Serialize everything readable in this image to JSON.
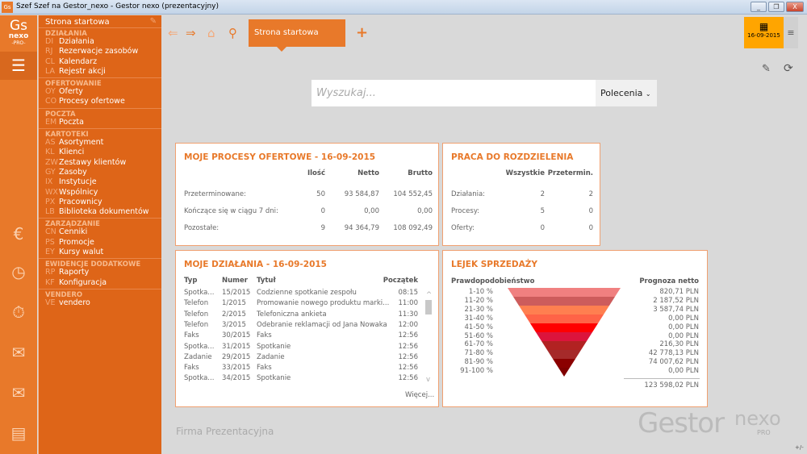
{
  "window": {
    "title": "Szef Szef na Gestor_nexo - Gestor nexo (prezentacyjny)",
    "app_icon": "Gs",
    "minimize": "_",
    "restore": "❐",
    "close": "X"
  },
  "logo": {
    "line1": "Gs",
    "line2": "nexo",
    "line3": "-PRO-"
  },
  "menu": {
    "home": "Strona startowa",
    "sections": [
      {
        "title": "DZIAŁANIA",
        "items": [
          {
            "code": "DI",
            "label": "Działania"
          },
          {
            "code": "RJ",
            "label": "Rezerwacje zasobów"
          },
          {
            "code": "CL",
            "label": "Kalendarz"
          },
          {
            "code": "LA",
            "label": "Rejestr akcji"
          }
        ]
      },
      {
        "title": "OFERTOWANIE",
        "items": [
          {
            "code": "OY",
            "label": "Oferty"
          },
          {
            "code": "CO",
            "label": "Procesy ofertowe"
          }
        ]
      },
      {
        "title": "POCZTA",
        "items": [
          {
            "code": "EM",
            "label": "Poczta"
          }
        ]
      },
      {
        "title": "KARTOTEKI",
        "items": [
          {
            "code": "AS",
            "label": "Asortyment"
          },
          {
            "code": "KL",
            "label": "Klienci"
          },
          {
            "code": "ZW",
            "label": "Zestawy klientów"
          },
          {
            "code": "GY",
            "label": "Zasoby"
          },
          {
            "code": "IX",
            "label": "Instytucje"
          },
          {
            "code": "WX",
            "label": "Wspólnicy"
          },
          {
            "code": "PX",
            "label": "Pracownicy"
          },
          {
            "code": "LB",
            "label": "Biblioteka dokumentów"
          }
        ]
      },
      {
        "title": "ZARZĄDZANIE",
        "items": [
          {
            "code": "CN",
            "label": "Cenniki"
          },
          {
            "code": "PS",
            "label": "Promocje"
          },
          {
            "code": "EY",
            "label": "Kursy walut"
          }
        ]
      },
      {
        "title": "EWIDENCJE DODATKOWE",
        "items": [
          {
            "code": "RP",
            "label": "Raporty"
          },
          {
            "code": "KF",
            "label": "Konfiguracja"
          }
        ]
      },
      {
        "title": "VENDERO",
        "items": [
          {
            "code": "VE",
            "label": "vendero"
          }
        ]
      }
    ]
  },
  "toolbar": {
    "tab": "Strona startowa",
    "add": "+",
    "date": "16-09-2015",
    "menu": "≡"
  },
  "search": {
    "placeholder": "Wyszukaj...",
    "commands": "Polecenia"
  },
  "offers": {
    "title": "MOJE PROCESY OFERTOWE - 16-09-2015",
    "columns": [
      "Ilość",
      "Netto",
      "Brutto"
    ],
    "rows": [
      {
        "label": "Przeterminowane:",
        "values": [
          "50",
          "93 584,87",
          "104 552,45"
        ]
      },
      {
        "label": "Kończące się w ciągu 7 dni:",
        "values": [
          "0",
          "0,00",
          "0,00"
        ]
      },
      {
        "label": "Pozostałe:",
        "values": [
          "9",
          "94 364,79",
          "108 092,49"
        ]
      }
    ]
  },
  "work": {
    "title": "PRACA DO ROZDZIELENIA",
    "columns": [
      "Wszystkie",
      "Przetermin."
    ],
    "rows": [
      {
        "label": "Działania:",
        "values": [
          "2",
          "2"
        ]
      },
      {
        "label": "Procesy:",
        "values": [
          "5",
          "0"
        ]
      },
      {
        "label": "Oferty:",
        "values": [
          "0",
          "0"
        ]
      }
    ]
  },
  "actions": {
    "title": "MOJE DZIAŁANIA - 16-09-2015",
    "columns": [
      "Typ",
      "Numer",
      "Tytuł",
      "Początek"
    ],
    "rows": [
      [
        "Spotka...",
        "15/2015",
        "Codzienne spotkanie zespołu",
        "08:15"
      ],
      [
        "Telefon",
        "1/2015",
        "Promowanie nowego produktu marki...",
        "11:00"
      ],
      [
        "Telefon",
        "2/2015",
        "Telefoniczna ankieta",
        "11:30"
      ],
      [
        "Telefon",
        "3/2015",
        "Odebranie reklamacji od Jana Nowaka",
        "12:00"
      ],
      [
        "Faks",
        "30/2015",
        "Faks",
        "12:56"
      ],
      [
        "Spotka...",
        "31/2015",
        "Spotkanie",
        "12:56"
      ],
      [
        "Zadanie",
        "29/2015",
        "Zadanie",
        "12:56"
      ],
      [
        "Faks",
        "33/2015",
        "Faks",
        "12:56"
      ],
      [
        "Spotka...",
        "34/2015",
        "Spotkanie",
        "12:56"
      ]
    ],
    "more": "Więcej..."
  },
  "funnel": {
    "title": "LEJEK SPRZEDAŻY",
    "left_header": "Prawdopodobieństwo",
    "right_header": "Prognoza netto",
    "total": "123 598,02 PLN",
    "rows": [
      {
        "range": "1-10 %",
        "value": "820,71 PLN",
        "color": "#f08080"
      },
      {
        "range": "11-20 %",
        "value": "2 187,52 PLN",
        "color": "#cd5c5c"
      },
      {
        "range": "21-30 %",
        "value": "3 587,74 PLN",
        "color": "#ff7f50"
      },
      {
        "range": "31-40 %",
        "value": "0,00 PLN",
        "color": "#ff6347"
      },
      {
        "range": "41-50 %",
        "value": "0,00 PLN",
        "color": "#ff0000"
      },
      {
        "range": "51-60 %",
        "value": "0,00 PLN",
        "color": "#dc143c"
      },
      {
        "range": "61-70 %",
        "value": "216,30 PLN",
        "color": "#b22222"
      },
      {
        "range": "71-80 %",
        "value": "42 778,13 PLN",
        "color": "#a52a2a"
      },
      {
        "range": "81-90 %",
        "value": "74 007,62 PLN",
        "color": "#8b0000"
      },
      {
        "range": "91-100 %",
        "value": "0,00 PLN",
        "color": "#800000"
      }
    ]
  },
  "footer": {
    "company": "Firma Prezentacyjna",
    "brand": "Gestor",
    "brand2": "nexo",
    "brand3": "PRO",
    "corner": "+/-"
  }
}
